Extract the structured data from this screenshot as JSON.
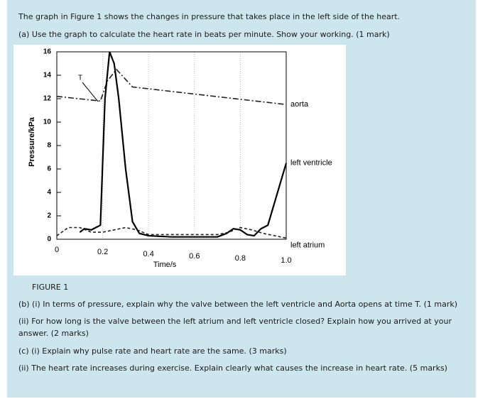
{
  "question": {
    "intro": "The graph in Figure 1 shows the changes in pressure that takes place in the left side of the heart.",
    "part_a": "(a) Use the graph to calculate the heart rate in beats per minute. Show your working. (1 mark)",
    "figure_label": "FIGURE 1",
    "part_b_i": "(b) (i) In terms of pressure, explain why the valve between the left ventricle and Aorta opens at time T. (1 mark)",
    "part_b_ii": "(ii) For how long is the valve between the left atrium and left ventricle closed? Explain how you arrived at your answer. (2 marks)",
    "part_c_i": "(c) (i) Explain why pulse rate and heart rate are the same. (3 marks)",
    "part_c_ii": "(ii) The heart rate increases during exercise. Explain clearly what causes the increase in heart rate. (5 marks)"
  },
  "chart_data": {
    "type": "line",
    "x_label": "Time/s",
    "y_label": "Pressure/kPa",
    "annotation": "T",
    "xlim": [
      0,
      1.0
    ],
    "ylim": [
      0,
      16
    ],
    "xticks": [
      0,
      0.2,
      0.4,
      0.6,
      0.8,
      {
        "value": 1.0,
        "label": "1.0"
      }
    ],
    "yticks": [
      0,
      2,
      4,
      6,
      8,
      10,
      12,
      14,
      16
    ],
    "grid": true,
    "series": [
      {
        "name": "aorta",
        "color": "#222222",
        "line_style": "dashdot",
        "x": [
          0,
          0.19,
          0.22,
          0.26,
          0.33,
          1.0
        ],
        "values": [
          12.2,
          11.8,
          13.5,
          14.5,
          13,
          11.5
        ]
      },
      {
        "name": "left ventricle",
        "color": "#000000",
        "line_style": "solid",
        "x": [
          0.1,
          0.12,
          0.15,
          0.17,
          0.19,
          0.21,
          0.23,
          0.25,
          0.27,
          0.3,
          0.33,
          0.36,
          0.4,
          0.5,
          0.6,
          0.7,
          0.74,
          0.77,
          0.8,
          0.83,
          0.86,
          0.89,
          0.92,
          1.0
        ],
        "values": [
          0.6,
          0.9,
          0.8,
          1.0,
          1.2,
          12,
          16,
          15,
          12,
          6,
          1.5,
          0.5,
          0.3,
          0.2,
          0.2,
          0.2,
          0.5,
          0.9,
          0.8,
          0.4,
          0.3,
          0.9,
          1.2,
          6.5
        ]
      },
      {
        "name": "left atrium",
        "color": "#222222",
        "line_style": "dashed",
        "x": [
          0,
          0.05,
          0.1,
          0.15,
          0.2,
          0.25,
          0.3,
          0.35,
          0.4,
          0.5,
          0.6,
          0.7,
          0.75,
          0.8,
          0.85,
          0.9,
          0.95,
          1.0
        ],
        "values": [
          0.3,
          1.0,
          1.0,
          0.6,
          0.6,
          0.8,
          1.0,
          0.8,
          0.4,
          0.4,
          0.4,
          0.4,
          0.6,
          1.0,
          0.8,
          0.5,
          0.3,
          0.1
        ]
      }
    ]
  }
}
